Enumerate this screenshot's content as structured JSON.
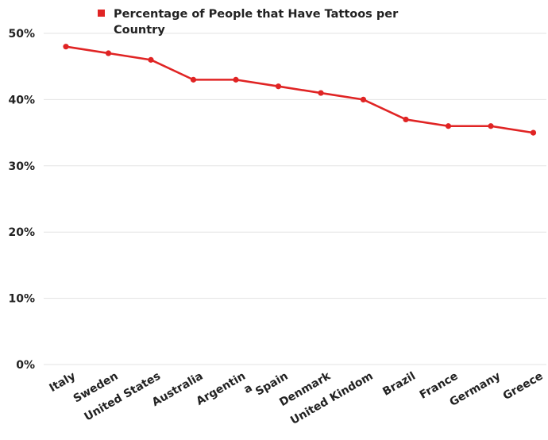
{
  "chart_data": {
    "type": "line",
    "categories": [
      "Italy",
      "Sweden",
      "United States",
      "Australia",
      "Argentina",
      "Spain",
      "Denmark",
      "United Kindom",
      "Brazil",
      "France",
      "Germany",
      "Greece"
    ],
    "category_label_lines": [
      [
        "Italy"
      ],
      [
        "Sweden"
      ],
      [
        "United States"
      ],
      [
        "Australia"
      ],
      [
        "Argentin",
        "a"
      ],
      [
        "Spain"
      ],
      [
        "Denmark"
      ],
      [
        "United Kindom"
      ],
      [
        "Brazil"
      ],
      [
        "France"
      ],
      [
        "Germany"
      ],
      [
        "Greece"
      ]
    ],
    "series": [
      {
        "name": "Percentage of People that Have Tattoos per Country",
        "name_lines": [
          "Percentage of People that Have Tattoos per",
          "Country"
        ],
        "values": [
          48,
          47,
          46,
          43,
          43,
          42,
          41,
          40,
          37,
          36,
          36,
          35
        ],
        "color": "#e02424"
      }
    ],
    "ylim": [
      0,
      50
    ],
    "yticks": [
      0,
      10,
      20,
      30,
      40,
      50
    ],
    "ytick_labels": [
      "0%",
      "10%",
      "20%",
      "30%",
      "40%",
      "50%"
    ],
    "grid": true,
    "legend_position": "top"
  }
}
